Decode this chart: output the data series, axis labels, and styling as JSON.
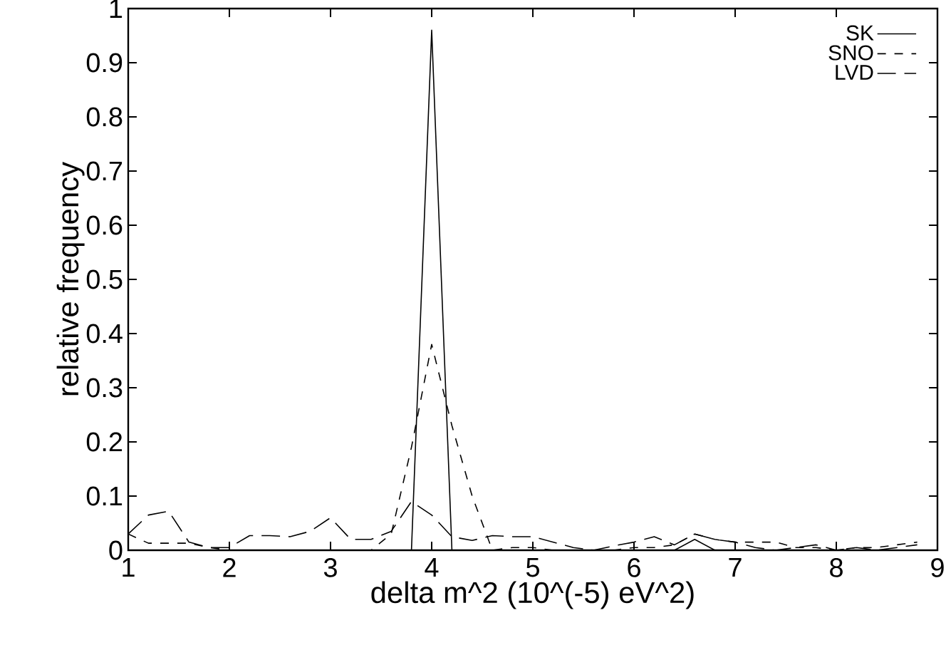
{
  "chart_data": {
    "type": "line",
    "xlabel": "delta m^2 (10^(-5) eV^2)",
    "ylabel": "relative frequency",
    "x": [
      1.0,
      1.2,
      1.4,
      1.6,
      1.8,
      2.0,
      2.2,
      2.4,
      2.6,
      2.8,
      3.0,
      3.2,
      3.4,
      3.6,
      3.8,
      4.0,
      4.2,
      4.4,
      4.6,
      4.8,
      5.0,
      5.2,
      5.4,
      5.6,
      5.8,
      6.0,
      6.2,
      6.4,
      6.6,
      6.8,
      7.0,
      7.2,
      7.4,
      7.6,
      7.8,
      8.0,
      8.2,
      8.4,
      8.6,
      8.8
    ],
    "series": [
      {
        "name": "SK",
        "color": "#000000",
        "line_style": "solid",
        "values": [
          0,
          0,
          0,
          0,
          0,
          0,
          0,
          0,
          0,
          0,
          0,
          0,
          0,
          0,
          0,
          0.96,
          0,
          0,
          0,
          0,
          0,
          0,
          0,
          0,
          0,
          0,
          0,
          0,
          0.02,
          0,
          0,
          0,
          0,
          0,
          0,
          0,
          0,
          0,
          0,
          0
        ]
      },
      {
        "name": "SNO",
        "color": "#000000",
        "line_style": "dashed",
        "values": [
          0.03,
          0.013,
          0.013,
          0.013,
          0.005,
          0,
          0,
          0,
          0,
          0,
          0,
          0,
          0,
          0.03,
          0.19,
          0.38,
          0.23,
          0.1,
          0,
          0.005,
          0.005,
          0,
          0,
          0,
          0,
          0.005,
          0.005,
          0.01,
          0.03,
          0.02,
          0.015,
          0.015,
          0.015,
          0.005,
          0.005,
          0,
          0.005,
          0.005,
          0.01,
          0.015
        ]
      },
      {
        "name": "LVD",
        "color": "#000000",
        "line_style": "dashed",
        "values": [
          0.03,
          0.065,
          0.072,
          0.015,
          0.005,
          0.005,
          0.027,
          0.027,
          0.025,
          0.035,
          0.06,
          0.02,
          0.02,
          0.035,
          0.09,
          0.065,
          0.025,
          0.018,
          0.027,
          0.025,
          0.025,
          0.015,
          0.005,
          0,
          0.008,
          0.015,
          0.025,
          0.01,
          0.03,
          0.02,
          0.015,
          0.005,
          0,
          0.005,
          0.01,
          0,
          0.005,
          0,
          0.005,
          0.01
        ]
      }
    ],
    "xlim": [
      1,
      9
    ],
    "ylim": [
      0,
      1
    ],
    "xticks": [
      1,
      2,
      3,
      4,
      5,
      6,
      7,
      8,
      9
    ],
    "yticks": [
      0,
      0.1,
      0.2,
      0.3,
      0.4,
      0.5,
      0.6,
      0.7,
      0.8,
      0.9,
      1
    ],
    "legend": "top right",
    "marker": "none",
    "grid": false
  }
}
